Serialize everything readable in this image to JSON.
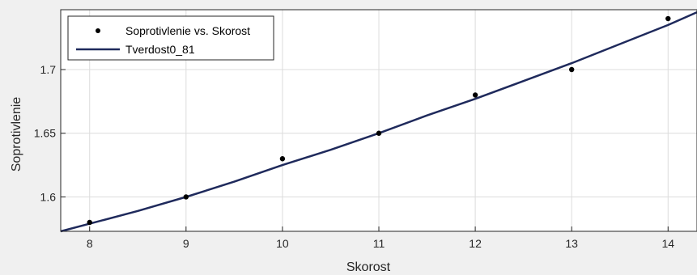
{
  "chart_data": {
    "type": "scatter",
    "xlabel": "Skorost",
    "ylabel": "Soprotivlenie",
    "xlim": [
      7.7,
      14.3
    ],
    "ylim": [
      1.573,
      1.747
    ],
    "xticks": [
      "8",
      "9",
      "10",
      "11",
      "12",
      "13",
      "14"
    ],
    "yticks": [
      "1.6",
      "1.65",
      "1.7"
    ],
    "grid": true,
    "legend_position": "top-left",
    "series": [
      {
        "name": "Soprotivlenie vs. Skorost",
        "kind": "points",
        "color": "#000000",
        "x": [
          8,
          9,
          10,
          11,
          12,
          13,
          14
        ],
        "y": [
          1.58,
          1.6,
          1.63,
          1.65,
          1.68,
          1.7,
          1.74
        ]
      },
      {
        "name": "Tverdost0_81",
        "kind": "line",
        "color": "#1f2a5c",
        "x": [
          7.7,
          8,
          8.5,
          9,
          9.5,
          10,
          10.5,
          11,
          11.5,
          12,
          12.5,
          13,
          13.5,
          14,
          14.3
        ],
        "y": [
          1.573,
          1.579,
          1.589,
          1.6,
          1.612,
          1.625,
          1.637,
          1.65,
          1.664,
          1.677,
          1.691,
          1.705,
          1.72,
          1.735,
          1.745
        ]
      }
    ]
  }
}
